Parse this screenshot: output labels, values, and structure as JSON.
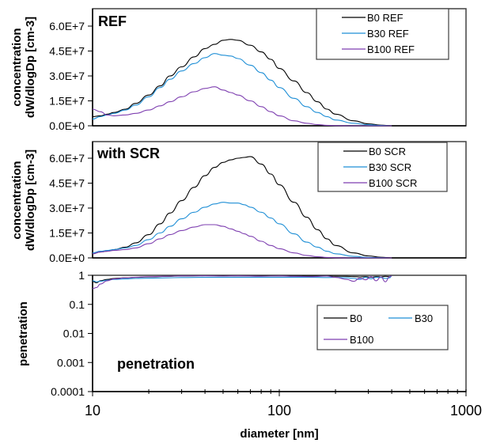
{
  "chart_data": [
    {
      "type": "line",
      "panel_label": "REF",
      "ylabel": [
        "concentration",
        "dW/dlogDp [cm-3]"
      ],
      "xlabel": "",
      "xscale": "log",
      "xlim": [
        10,
        1000
      ],
      "ylim": [
        0,
        66000000
      ],
      "yticks": [
        0,
        15000000,
        30000000,
        45000000,
        60000000
      ],
      "ytick_labels": [
        "0.0E+0",
        "1.5E+7",
        "3.0E+7",
        "4.5E+7",
        "6.0E+7"
      ],
      "legend": {
        "placement": "top-right",
        "entries": [
          "B0 REF",
          "B30 REF",
          "B100 REF"
        ]
      },
      "x": [
        10,
        11,
        12,
        13,
        15,
        17,
        20,
        23,
        26,
        30,
        35,
        40,
        45,
        50,
        55,
        60,
        70,
        80,
        90,
        100,
        120,
        140,
        160,
        180,
        200,
        250,
        300,
        350,
        400
      ],
      "series": [
        {
          "name": "B0 REF",
          "color": "#000000",
          "values": [
            5500000,
            6000000,
            7000000,
            8000000,
            10000000,
            13500000,
            18500000,
            24000000,
            30000000,
            35500000,
            41500000,
            46500000,
            49000000,
            51500000,
            52000000,
            51500000,
            48500000,
            44500000,
            40000000,
            34500000,
            27000000,
            20000000,
            14500000,
            10000000,
            7000000,
            3000000,
            1200000,
            400000,
            0
          ]
        },
        {
          "name": "B30 REF",
          "color": "#1f8fd6",
          "values": [
            4000000,
            5500000,
            6500000,
            7500000,
            9500000,
            12500000,
            17500000,
            23000000,
            28000000,
            33000000,
            37500000,
            41000000,
            43500000,
            42500000,
            42000000,
            40500000,
            36500000,
            32000000,
            27500000,
            23000000,
            16500000,
            11500000,
            8000000,
            5500000,
            3500000,
            1500000,
            600000,
            200000,
            0
          ]
        },
        {
          "name": "B100 REF",
          "color": "#7e3fb0",
          "values": [
            10000000,
            8500000,
            6500000,
            6000000,
            6500000,
            7500000,
            9500000,
            12000000,
            14500000,
            17500000,
            20500000,
            22500000,
            23500000,
            21500000,
            20000000,
            18500000,
            15000000,
            11500000,
            8500000,
            6000000,
            3000000,
            1500000,
            700000,
            300000,
            100000,
            0,
            0,
            0,
            0
          ]
        }
      ]
    },
    {
      "type": "line",
      "panel_label": "with SCR",
      "ylabel": [
        "concentration",
        "dW/dlogDp [cm-3]"
      ],
      "xlabel": "",
      "xscale": "log",
      "xlim": [
        10,
        1000
      ],
      "ylim": [
        0,
        66000000
      ],
      "yticks": [
        0,
        15000000,
        30000000,
        45000000,
        60000000
      ],
      "ytick_labels": [
        "0.0E+0",
        "1.5E+7",
        "3.0E+7",
        "4.5E+7",
        "6.0E+7"
      ],
      "legend": {
        "placement": "top-right",
        "entries": [
          "B0 SCR",
          "B30 SCR",
          "B100 SCR"
        ]
      },
      "x": [
        10,
        11,
        12,
        13,
        15,
        17,
        20,
        23,
        26,
        30,
        35,
        40,
        45,
        50,
        55,
        60,
        65,
        70,
        80,
        90,
        100,
        120,
        140,
        160,
        180,
        200,
        250,
        300,
        350,
        400
      ],
      "series": [
        {
          "name": "B0 SCR",
          "color": "#000000",
          "values": [
            2500000,
            3500000,
            4000000,
            5000000,
            6500000,
            9000000,
            14000000,
            20500000,
            27000000,
            34500000,
            42500000,
            49500000,
            54500000,
            57500000,
            59000000,
            60000000,
            60500000,
            61000000,
            56500000,
            50500000,
            44000000,
            33500000,
            24500000,
            17000000,
            11500000,
            7500000,
            3000000,
            1200000,
            400000,
            0
          ]
        },
        {
          "name": "B30 SCR",
          "color": "#1f8fd6",
          "values": [
            3000000,
            4000000,
            4500000,
            5000000,
            6000000,
            7500000,
            11000000,
            15000000,
            19000000,
            23500000,
            27500000,
            30500000,
            32500000,
            33500000,
            33000000,
            33000000,
            32000000,
            30500000,
            27500000,
            24000000,
            20500000,
            14500000,
            9500000,
            6500000,
            4000000,
            2500000,
            900000,
            300000,
            100000,
            0
          ]
        },
        {
          "name": "B100 SCR",
          "color": "#7e3fb0",
          "values": [
            2500000,
            3500000,
            4000000,
            4500000,
            5000000,
            6000000,
            8500000,
            11500000,
            14000000,
            16500000,
            18500000,
            20000000,
            20000000,
            19000000,
            17500000,
            16000000,
            14500000,
            13000000,
            10000000,
            7500000,
            5500000,
            3000000,
            1500000,
            700000,
            300000,
            100000,
            0,
            0,
            0,
            0
          ]
        }
      ]
    },
    {
      "type": "line",
      "panel_label": "penetration",
      "ylabel": [
        "penetration"
      ],
      "xlabel": "diameter [nm]",
      "xscale": "log",
      "yscale": "log",
      "xlim": [
        10,
        1000
      ],
      "ylim": [
        0.0001,
        1
      ],
      "yticks": [
        0.0001,
        0.001,
        0.01,
        0.1,
        1
      ],
      "ytick_labels": [
        "0.0001",
        "0.001",
        "0.01",
        "0.1",
        "1"
      ],
      "xticks": [
        10,
        100,
        1000
      ],
      "xtick_labels": [
        "10",
        "100",
        "1000"
      ],
      "legend": {
        "placement": "center-right",
        "entries": [
          "B0",
          "B30",
          "B100"
        ]
      },
      "x": [
        10,
        10.5,
        11,
        12,
        13,
        15,
        17,
        20,
        25,
        30,
        40,
        50,
        60,
        80,
        100,
        120,
        150,
        180,
        200,
        230,
        250,
        270,
        290,
        310,
        330,
        350,
        370,
        390,
        400
      ],
      "series": [
        {
          "name": "B0",
          "color": "#000000",
          "values": [
            0.62,
            0.55,
            0.65,
            0.72,
            0.78,
            0.82,
            0.85,
            0.88,
            0.92,
            0.95,
            0.97,
            0.97,
            0.96,
            0.96,
            0.95,
            0.95,
            0.94,
            0.95,
            0.93,
            0.92,
            0.9,
            0.88,
            0.9,
            0.86,
            0.9,
            0.88,
            0.92,
            0.9,
            0.95
          ]
        },
        {
          "name": "B30",
          "color": "#1f8fd6",
          "values": [
            0.65,
            0.6,
            0.62,
            0.68,
            0.72,
            0.75,
            0.78,
            0.8,
            0.82,
            0.84,
            0.85,
            0.85,
            0.85,
            0.85,
            0.85,
            0.85,
            0.85,
            0.84,
            0.85,
            0.82,
            0.78,
            0.72,
            0.85,
            0.76,
            0.85,
            0.84,
            0.78,
            0.82,
            0.95
          ]
        },
        {
          "name": "B100",
          "color": "#7e3fb0",
          "values": [
            0.35,
            0.38,
            0.5,
            0.65,
            0.75,
            0.82,
            0.86,
            0.9,
            0.93,
            0.95,
            0.96,
            0.94,
            0.96,
            0.93,
            0.95,
            0.92,
            0.9,
            0.94,
            0.85,
            0.72,
            0.62,
            0.8,
            0.7,
            0.9,
            0.65,
            0.88,
            0.6,
            0.9,
            0.95
          ]
        }
      ]
    }
  ]
}
